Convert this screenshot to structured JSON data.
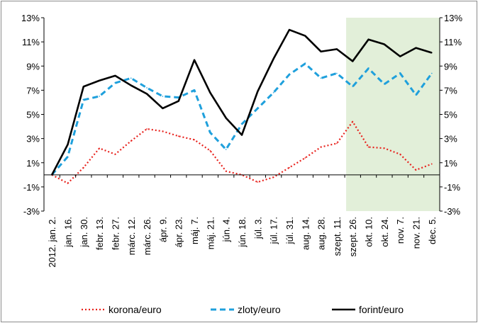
{
  "chart_data": {
    "type": "line",
    "title": "",
    "xlabel": "",
    "ylabel": "",
    "ylim": [
      -3,
      13
    ],
    "yticks": [
      "13%",
      "11%",
      "9%",
      "7%",
      "5%",
      "3%",
      "1%",
      "-1%",
      "-3%"
    ],
    "ytick_values": [
      13,
      11,
      9,
      7,
      5,
      3,
      1,
      -1,
      -3
    ],
    "categories": [
      "2012. jan. 2.",
      "jan. 16.",
      "jan. 30.",
      "febr. 13.",
      "febr. 27.",
      "márc. 12.",
      "márc. 26.",
      "ápr. 9.",
      "ápr. 23.",
      "máj. 7.",
      "máj. 21.",
      "jún. 4.",
      "jún. 18.",
      "júl. 3.",
      "júl. 17.",
      "júl. 31.",
      "aug. 14.",
      "aug. 28.",
      "szept. 11.",
      "szept. 26.",
      "okt. 10.",
      "okt. 24.",
      "nov. 7.",
      "nov. 21.",
      "dec. 5."
    ],
    "shaded_region": {
      "from": "szept. 26.",
      "to": "dec. 5.",
      "color": "#e2efd9"
    },
    "grid": false,
    "legend_position": "bottom",
    "series": [
      {
        "name": "korona/euro",
        "color": "#e8231e",
        "style": "dotted",
        "values": [
          0.0,
          -0.7,
          0.6,
          2.2,
          1.7,
          2.8,
          3.8,
          3.6,
          3.2,
          2.9,
          2.0,
          0.3,
          0.0,
          -0.6,
          -0.2,
          0.6,
          1.4,
          2.3,
          2.6,
          4.4,
          2.3,
          2.2,
          1.7,
          0.4,
          0.9
        ]
      },
      {
        "name": "zloty/euro",
        "color": "#1fa0dc",
        "style": "dashed",
        "values": [
          0.0,
          1.5,
          6.2,
          6.5,
          7.6,
          8.0,
          7.2,
          6.5,
          6.4,
          7.0,
          3.5,
          2.1,
          4.2,
          5.5,
          6.8,
          8.3,
          9.2,
          8.0,
          8.4,
          7.3,
          8.8,
          7.5,
          8.4,
          6.6,
          8.4
        ]
      },
      {
        "name": "forint/euro",
        "color": "#000000",
        "style": "solid",
        "values": [
          0.0,
          2.5,
          7.3,
          7.8,
          8.2,
          7.4,
          6.7,
          5.5,
          6.1,
          9.5,
          6.8,
          4.7,
          3.3,
          6.9,
          9.6,
          12.0,
          11.5,
          10.2,
          10.4,
          9.4,
          11.2,
          10.8,
          9.8,
          10.5,
          10.1
        ]
      }
    ]
  }
}
